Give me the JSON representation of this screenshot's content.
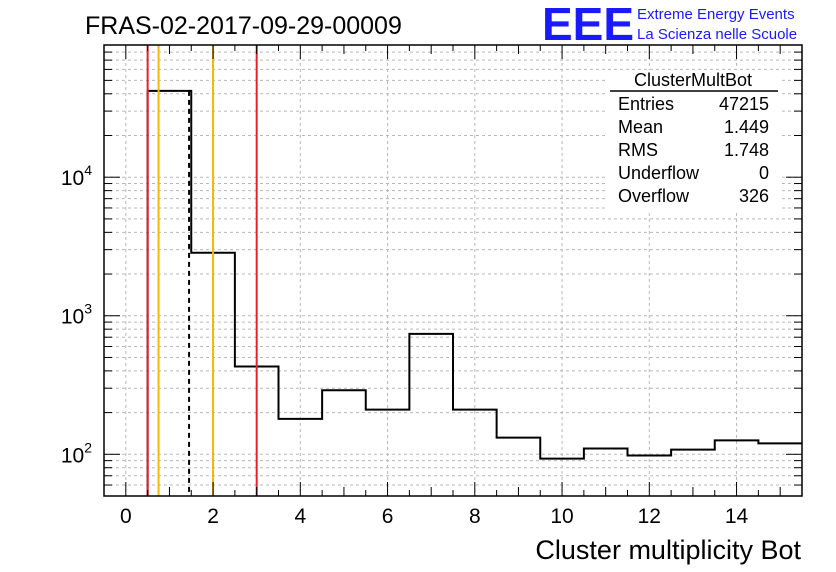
{
  "chart_data": {
    "type": "bar",
    "title": "FRAS-02-2017-09-29-00009",
    "xlabel": "Cluster multiplicity Bot",
    "ylabel": "",
    "x_scale": "linear",
    "y_scale": "log",
    "xlim": [
      -0.5,
      15.5
    ],
    "ylim": [
      50,
      90000
    ],
    "grid": true,
    "bin_edges": [
      0.5,
      1.5,
      2.5,
      3.5,
      4.5,
      5.5,
      6.5,
      7.5,
      8.5,
      9.5,
      10.5,
      11.5,
      12.5,
      13.5,
      14.5,
      15.5
    ],
    "values": [
      42000,
      2850,
      430,
      180,
      290,
      210,
      740,
      210,
      132,
      93,
      110,
      98,
      108,
      126,
      120
    ],
    "x_ticks": [
      "0",
      "2",
      "4",
      "6",
      "8",
      "10",
      "12",
      "14"
    ],
    "y_ticks": [
      {
        "base": "10",
        "exp": "2",
        "value": 100
      },
      {
        "base": "10",
        "exp": "3",
        "value": 1000
      },
      {
        "base": "10",
        "exp": "4",
        "value": 10000
      }
    ],
    "vertical_lines": [
      {
        "x": 0.5,
        "color": "#e8202a",
        "style": "solid"
      },
      {
        "x": 0.75,
        "color": "#f5b800",
        "style": "solid"
      },
      {
        "x": 1.45,
        "color": "#000000",
        "style": "dashed"
      },
      {
        "x": 2.0,
        "color": "#f5b800",
        "style": "solid"
      },
      {
        "x": 3.0,
        "color": "#e8202a",
        "style": "solid"
      }
    ],
    "stats_box": {
      "title": "ClusterMultBot",
      "rows": [
        {
          "label": "Entries",
          "value": "47215"
        },
        {
          "label": "Mean",
          "value": "1.449"
        },
        {
          "label": "RMS",
          "value": "1.748"
        },
        {
          "label": "Underflow",
          "value": "0"
        },
        {
          "label": "Overflow",
          "value": "326"
        }
      ]
    }
  },
  "logo": {
    "mark": "EEE",
    "line1": "Extreme Energy Events",
    "line2": "La Scienza nelle Scuole",
    "color": "#1a1aff"
  }
}
